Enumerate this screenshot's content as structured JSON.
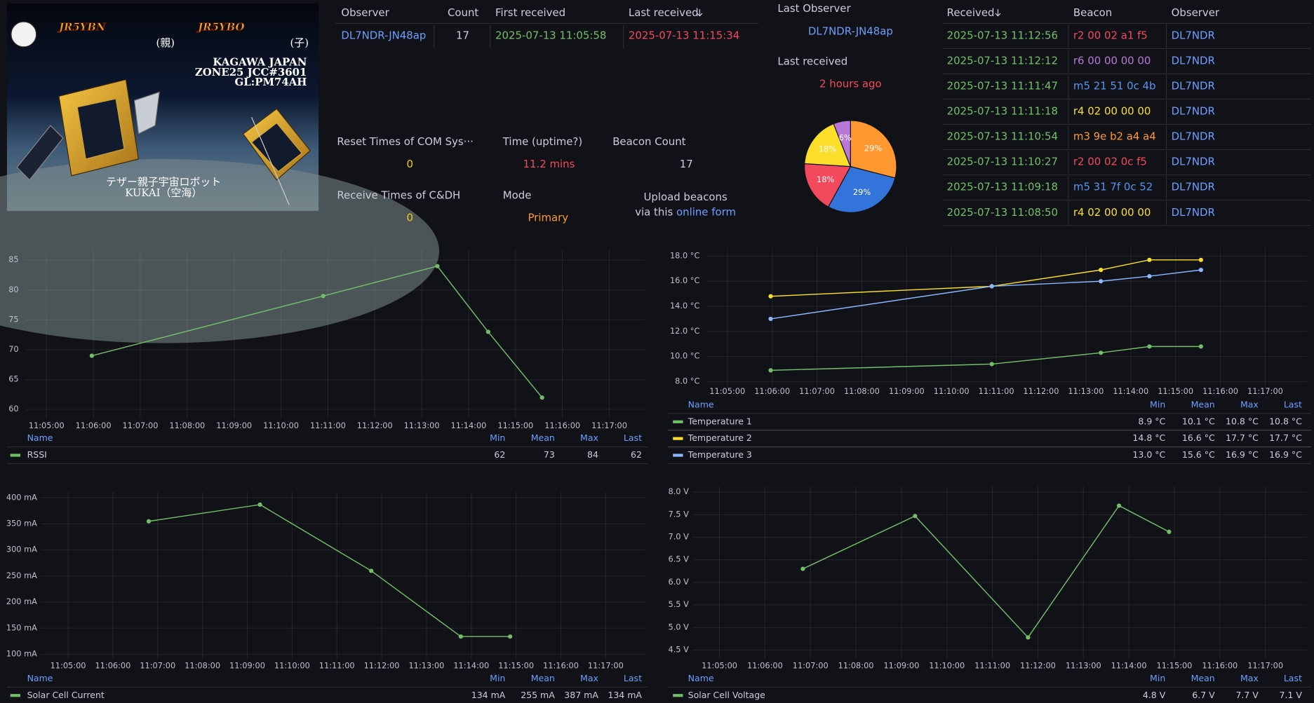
{
  "qsl_card": {
    "callsign_1": "JR5YBN",
    "suffix_1": "(親)",
    "callsign_2": "JR5YBO",
    "suffix_2": "(子)",
    "address_lines": [
      "KAGAWA JAPAN",
      "ZONE25 JCC#3601",
      "GL:PM74AH"
    ],
    "caption_lines": [
      "テザー親子宇宙ロボット",
      "KUKAI（空海）"
    ]
  },
  "observer_table": {
    "headers": [
      "Observer",
      "Count",
      "First received",
      "Last received"
    ],
    "rows": [
      [
        "DL7NDR-JN48ap",
        "17",
        "2025-07-13 11:05:58",
        "2025-07-13 11:15:34"
      ]
    ]
  },
  "last_observer": {
    "label": "Last Observer",
    "value": "DL7NDR-JN48ap"
  },
  "last_received": {
    "label": "Last received",
    "value": "2 hours ago"
  },
  "stats": [
    {
      "label": "Reset Times of COM Sys···",
      "value": "0",
      "color": "#f2cc0c"
    },
    {
      "label": "Time (uptime?)",
      "value": "11.2 mins",
      "color": "#f2495c"
    },
    {
      "label": "Beacon Count",
      "value": "17",
      "color": "#ccccdc"
    },
    {
      "label": "Receive Times of C&DH",
      "value": "0",
      "color": "#f2cc0c"
    },
    {
      "label": "Mode",
      "value": "Primary",
      "color": "#ff9830"
    }
  ],
  "upload": {
    "line1": "Upload beacons",
    "line2": "via this",
    "link": "online form"
  },
  "beacon_table": {
    "headers": [
      "Received",
      "Beacon",
      "Observer"
    ],
    "rows": [
      {
        "received": "2025-07-13 11:12:56",
        "beacon": "r2 00 02 a1 f5",
        "color": "#f2495c",
        "observer": "DL7NDR"
      },
      {
        "received": "2025-07-13 11:12:12",
        "beacon": "r6 00 00 00 00",
        "color": "#b877d9",
        "observer": "DL7NDR"
      },
      {
        "received": "2025-07-13 11:11:47",
        "beacon": "m5 21 51 0c 4b",
        "color": "#5794f2",
        "observer": "DL7NDR"
      },
      {
        "received": "2025-07-13 11:11:18",
        "beacon": "r4 02 00 00 00",
        "color": "#fade2a",
        "observer": "DL7NDR"
      },
      {
        "received": "2025-07-13 11:10:54",
        "beacon": "m3 9e b2 a4 a4",
        "color": "#ff9830",
        "observer": "DL7NDR"
      },
      {
        "received": "2025-07-13 11:10:27",
        "beacon": "r2 00 02 0c f5",
        "color": "#f2495c",
        "observer": "DL7NDR"
      },
      {
        "received": "2025-07-13 11:09:18",
        "beacon": "m5 31 7f 0c 52",
        "color": "#5794f2",
        "observer": "DL7NDR"
      },
      {
        "received": "2025-07-13 11:08:50",
        "beacon": "r4 02 00 00 00",
        "color": "#fade2a",
        "observer": "DL7NDR"
      }
    ]
  },
  "chart_data": [
    {
      "type": "pie",
      "values": [
        29,
        29,
        18,
        18,
        6
      ],
      "value_labels": [
        "29%",
        "29%",
        "18%",
        "18%",
        "6%"
      ],
      "colors": [
        "#ff9830",
        "#3274d9",
        "#f2495c",
        "#fade2a",
        "#b877d9"
      ]
    },
    {
      "type": "line",
      "x": [
        "11:05:58",
        "11:10:54",
        "11:13:20",
        "11:14:25",
        "11:15:34"
      ],
      "series": [
        {
          "name": "RSSI",
          "color": "#73bf69",
          "values": [
            69,
            79,
            84,
            73,
            62
          ],
          "stats": [
            "62",
            "73",
            "84",
            "62"
          ]
        }
      ],
      "xlim": [
        "11:04:33",
        "11:17:46"
      ],
      "ylim": [
        58.5,
        86.8
      ],
      "xticks": [
        "11:05:00",
        "11:06:00",
        "11:07:00",
        "11:08:00",
        "11:09:00",
        "11:10:00",
        "11:11:00",
        "11:12:00",
        "11:13:00",
        "11:14:00",
        "11:15:00",
        "11:16:00",
        "11:17:00"
      ],
      "yticks": [
        60,
        65,
        70,
        75,
        80,
        85
      ],
      "grid": true,
      "legend_columns": [
        "Name",
        "Min",
        "Mean",
        "Max",
        "Last"
      ]
    },
    {
      "type": "line",
      "x": [
        "11:05:58",
        "11:10:54",
        "11:13:20",
        "11:14:25",
        "11:15:34"
      ],
      "series": [
        {
          "name": "Temperature 1",
          "color": "#73bf69",
          "values": [
            8.9,
            9.4,
            10.3,
            10.8,
            10.8
          ],
          "stats": [
            "8.9 °C",
            "10.1 °C",
            "10.8 °C",
            "10.8 °C"
          ]
        },
        {
          "name": "Temperature 2",
          "color": "#fade2a",
          "values": [
            14.8,
            15.6,
            16.9,
            17.7,
            17.7
          ],
          "stats": [
            "14.8 °C",
            "16.6 °C",
            "17.7 °C",
            "17.7 °C"
          ]
        },
        {
          "name": "Temperature 3",
          "color": "#8ab8ff",
          "values": [
            13.0,
            15.6,
            16.0,
            16.4,
            16.9
          ],
          "stats": [
            "13.0 °C",
            "15.6 °C",
            "16.9 °C",
            "16.9 °C"
          ]
        }
      ],
      "xlim": [
        "11:04:32",
        "11:17:56"
      ],
      "ylim": [
        7.6,
        18.67
      ],
      "xticks": [
        "11:05:00",
        "11:06:00",
        "11:07:00",
        "11:08:00",
        "11:09:00",
        "11:10:00",
        "11:11:00",
        "11:12:00",
        "11:13:00",
        "11:14:00",
        "11:15:00",
        "11:16:00",
        "11:17:00"
      ],
      "yticks": [
        {
          "value": 8,
          "label": "8.0 °C"
        },
        {
          "value": 10,
          "label": "10.0 °C"
        },
        {
          "value": 12,
          "label": "12.0 °C"
        },
        {
          "value": 14,
          "label": "14.0 °C"
        },
        {
          "value": 16,
          "label": "16.0 °C"
        },
        {
          "value": 18,
          "label": "18.0 °C"
        }
      ],
      "grid": true,
      "legend_columns": [
        "Name",
        "Min",
        "Mean",
        "Max",
        "Last"
      ]
    },
    {
      "type": "line",
      "x": [
        "11:06:48",
        "11:09:17",
        "11:11:46",
        "11:13:46",
        "11:14:52"
      ],
      "series": [
        {
          "name": "Solar Cell Current",
          "color": "#73bf69",
          "values": [
            355,
            387,
            260,
            134,
            134
          ],
          "stats": [
            "134 mA",
            "255 mA",
            "387 mA",
            "134 mA"
          ]
        }
      ],
      "xlim": [
        "11:04:23",
        "11:17:53"
      ],
      "ylim": [
        90,
        411
      ],
      "xticks": [
        "11:05:00",
        "11:06:00",
        "11:07:00",
        "11:08:00",
        "11:09:00",
        "11:10:00",
        "11:11:00",
        "11:12:00",
        "11:13:00",
        "11:14:00",
        "11:15:00",
        "11:16:00",
        "11:17:00"
      ],
      "yticks": [
        {
          "value": 100,
          "label": "100 mA"
        },
        {
          "value": 150,
          "label": "150 mA"
        },
        {
          "value": 200,
          "label": "200 mA"
        },
        {
          "value": 250,
          "label": "250 mA"
        },
        {
          "value": 300,
          "label": "300 mA"
        },
        {
          "value": 350,
          "label": "350 mA"
        },
        {
          "value": 400,
          "label": "400 mA"
        }
      ],
      "grid": true,
      "legend_columns": [
        "Name",
        "Min",
        "Mean",
        "Max",
        "Last"
      ]
    },
    {
      "type": "line",
      "x": [
        "11:06:50",
        "11:09:18",
        "11:11:47",
        "11:13:47",
        "11:14:53"
      ],
      "series": [
        {
          "name": "Solar Cell Voltage",
          "color": "#73bf69",
          "values": [
            6.3,
            7.47,
            4.78,
            7.7,
            7.12
          ],
          "stats": [
            "4.8 V",
            "6.7 V",
            "7.7 V",
            "7.1 V"
          ]
        }
      ],
      "xlim": [
        "11:04:24",
        "11:17:55"
      ],
      "ylim": [
        4.31,
        8.13
      ],
      "xticks": [
        "11:05:00",
        "11:06:00",
        "11:07:00",
        "11:08:00",
        "11:09:00",
        "11:10:00",
        "11:11:00",
        "11:12:00",
        "11:13:00",
        "11:14:00",
        "11:15:00",
        "11:16:00",
        "11:17:00"
      ],
      "yticks": [
        {
          "value": 4.5,
          "label": "4.5 V"
        },
        {
          "value": 5,
          "label": "5.0 V"
        },
        {
          "value": 5.5,
          "label": "5.5 V"
        },
        {
          "value": 6,
          "label": "6.0 V"
        },
        {
          "value": 6.5,
          "label": "6.5 V"
        },
        {
          "value": 7,
          "label": "7.0 V"
        },
        {
          "value": 7.5,
          "label": "7.5 V"
        },
        {
          "value": 8,
          "label": "8.0 V"
        }
      ],
      "grid": true,
      "legend_columns": [
        "Name",
        "Min",
        "Mean",
        "Max",
        "Last"
      ]
    }
  ]
}
